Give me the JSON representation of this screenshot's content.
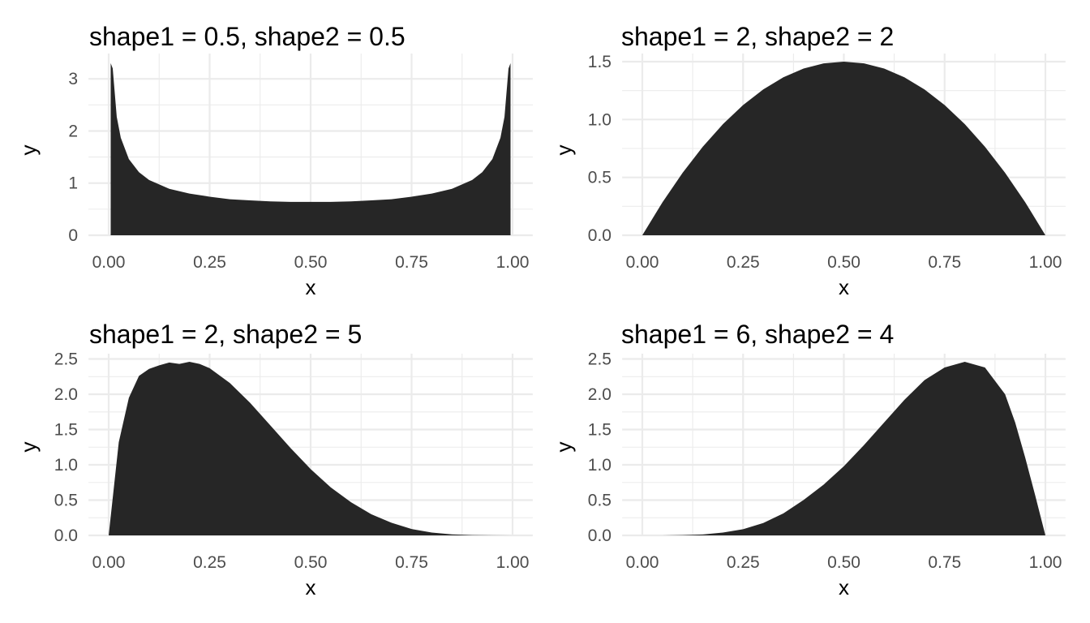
{
  "chart_data": [
    {
      "type": "area",
      "title": "shape1 = 0.5, shape2 = 0.5",
      "shape1": 0.5,
      "shape2": 0.5,
      "xlabel": "x",
      "ylabel": "y",
      "xlim": [
        0,
        1
      ],
      "ylim": [
        0,
        3.33
      ],
      "x_ticks": [
        0,
        0.25,
        0.5,
        0.75,
        1
      ],
      "x_tick_labels": [
        "0.00",
        "0.25",
        "0.50",
        "0.75",
        "1.00"
      ],
      "y_ticks": [
        0,
        1,
        2,
        3
      ],
      "y_tick_labels": [
        "0",
        "1",
        "2",
        "3"
      ],
      "x": [
        0.005,
        0.01,
        0.02,
        0.03,
        0.05,
        0.075,
        0.1,
        0.15,
        0.2,
        0.25,
        0.3,
        0.35,
        0.4,
        0.45,
        0.5,
        0.55,
        0.6,
        0.65,
        0.7,
        0.75,
        0.8,
        0.85,
        0.9,
        0.925,
        0.95,
        0.97,
        0.98,
        0.99,
        0.995
      ],
      "y": [
        3.3,
        3.2,
        2.27,
        1.87,
        1.46,
        1.21,
        1.06,
        0.89,
        0.8,
        0.74,
        0.69,
        0.67,
        0.65,
        0.64,
        0.64,
        0.64,
        0.65,
        0.67,
        0.69,
        0.74,
        0.8,
        0.89,
        1.06,
        1.21,
        1.46,
        1.87,
        2.27,
        3.2,
        3.3
      ],
      "grid": true,
      "fill_color": "#262626"
    },
    {
      "type": "area",
      "title": "shape1 = 2, shape2 = 2",
      "shape1": 2,
      "shape2": 2,
      "xlabel": "x",
      "ylabel": "y",
      "xlim": [
        0,
        1
      ],
      "ylim": [
        0,
        1.5
      ],
      "x_ticks": [
        0,
        0.25,
        0.5,
        0.75,
        1
      ],
      "x_tick_labels": [
        "0.00",
        "0.25",
        "0.50",
        "0.75",
        "1.00"
      ],
      "y_ticks": [
        0,
        0.5,
        1,
        1.5
      ],
      "y_tick_labels": [
        "0.0",
        "0.5",
        "1.0",
        "1.5"
      ],
      "x": [
        0,
        0.05,
        0.1,
        0.15,
        0.2,
        0.25,
        0.3,
        0.35,
        0.4,
        0.45,
        0.5,
        0.55,
        0.6,
        0.65,
        0.7,
        0.75,
        0.8,
        0.85,
        0.9,
        0.95,
        1
      ],
      "y": [
        0,
        0.285,
        0.54,
        0.765,
        0.96,
        1.125,
        1.26,
        1.365,
        1.44,
        1.485,
        1.5,
        1.485,
        1.44,
        1.365,
        1.26,
        1.125,
        0.96,
        0.765,
        0.54,
        0.285,
        0
      ],
      "grid": true,
      "fill_color": "#262626"
    },
    {
      "type": "area",
      "title": "shape1 = 2, shape2 = 5",
      "shape1": 2,
      "shape2": 5,
      "xlabel": "x",
      "ylabel": "y",
      "xlim": [
        0,
        1
      ],
      "ylim": [
        0,
        2.46
      ],
      "x_ticks": [
        0,
        0.25,
        0.5,
        0.75,
        1
      ],
      "x_tick_labels": [
        "0.00",
        "0.25",
        "0.50",
        "0.75",
        "1.00"
      ],
      "y_ticks": [
        0,
        0.5,
        1,
        1.5,
        2,
        2.5
      ],
      "y_tick_labels": [
        "0.0",
        "0.5",
        "1.0",
        "1.5",
        "2.0",
        "2.5"
      ],
      "x": [
        0,
        0.025,
        0.05,
        0.075,
        0.1,
        0.125,
        0.15,
        0.175,
        0.2,
        0.225,
        0.25,
        0.3,
        0.35,
        0.4,
        0.45,
        0.5,
        0.55,
        0.6,
        0.65,
        0.7,
        0.75,
        0.8,
        0.85,
        0.9,
        0.95,
        1
      ],
      "y": [
        0,
        1.32,
        1.95,
        2.26,
        2.36,
        2.41,
        2.45,
        2.43,
        2.46,
        2.43,
        2.37,
        2.16,
        1.88,
        1.56,
        1.24,
        0.94,
        0.68,
        0.47,
        0.3,
        0.18,
        0.09,
        0.04,
        0.015,
        0.005,
        0.001,
        0
      ],
      "grid": true,
      "fill_color": "#262626"
    },
    {
      "type": "area",
      "title": "shape1 = 6, shape2 = 4",
      "shape1": 6,
      "shape2": 4,
      "xlabel": "x",
      "ylabel": "y",
      "xlim": [
        0,
        1
      ],
      "ylim": [
        0,
        2.46
      ],
      "x_ticks": [
        0,
        0.25,
        0.5,
        0.75,
        1
      ],
      "x_tick_labels": [
        "0.00",
        "0.25",
        "0.50",
        "0.75",
        "1.00"
      ],
      "y_ticks": [
        0,
        0.5,
        1,
        1.5,
        2,
        2.5
      ],
      "y_tick_labels": [
        "0.0",
        "0.5",
        "1.0",
        "1.5",
        "2.0",
        "2.5"
      ],
      "x": [
        0,
        0.05,
        0.1,
        0.15,
        0.2,
        0.25,
        0.3,
        0.35,
        0.4,
        0.45,
        0.5,
        0.55,
        0.6,
        0.65,
        0.7,
        0.75,
        0.8,
        0.85,
        0.9,
        0.925,
        0.95,
        0.975,
        1
      ],
      "y": [
        0,
        0.0001,
        0.004,
        0.013,
        0.04,
        0.087,
        0.176,
        0.312,
        0.502,
        0.72,
        0.98,
        1.28,
        1.6,
        1.92,
        2.2,
        2.38,
        2.46,
        2.38,
        2.0,
        1.6,
        1.1,
        0.56,
        0
      ],
      "grid": true,
      "fill_color": "#262626"
    }
  ]
}
